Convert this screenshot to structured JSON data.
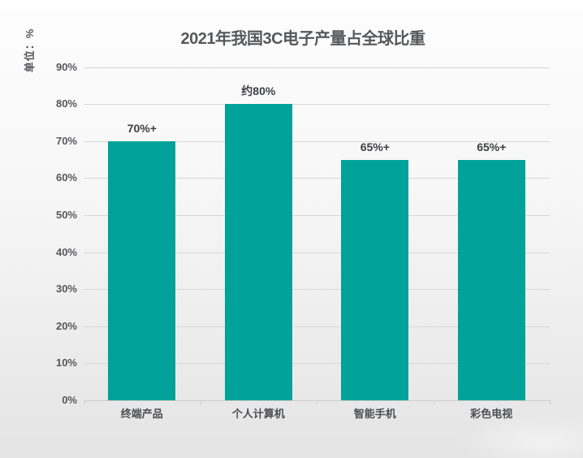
{
  "chart_data": {
    "type": "bar",
    "title": "2021年我国3C电子产量占全球比重",
    "ylabel": "单位：%",
    "categories": [
      "终端产品",
      "个人计算机",
      "智能手机",
      "彩色电视"
    ],
    "values": [
      70,
      80,
      65,
      65
    ],
    "value_labels": [
      "70%+",
      "约80%",
      "65%+",
      "65%+"
    ],
    "y_ticks": [
      90,
      80,
      70,
      60,
      50,
      40,
      30,
      20,
      10,
      0
    ],
    "y_tick_labels": [
      "90%",
      "80%",
      "70%",
      "60%",
      "50%",
      "40%",
      "30%",
      "20%",
      "10%",
      "0%"
    ],
    "ylim": [
      0,
      90
    ],
    "grid": true,
    "legend": false,
    "colors": {
      "bar": "#00a29a",
      "gridline": "#d8d8d8",
      "axis": "#cfcfcf",
      "title_text": "#57585a",
      "tick_text": "#56575a",
      "value_text": "#3e3f41",
      "category_text": "#4c4d50",
      "background_top": "#fdfdfd",
      "background_bottom": "#e4e4e4"
    }
  }
}
